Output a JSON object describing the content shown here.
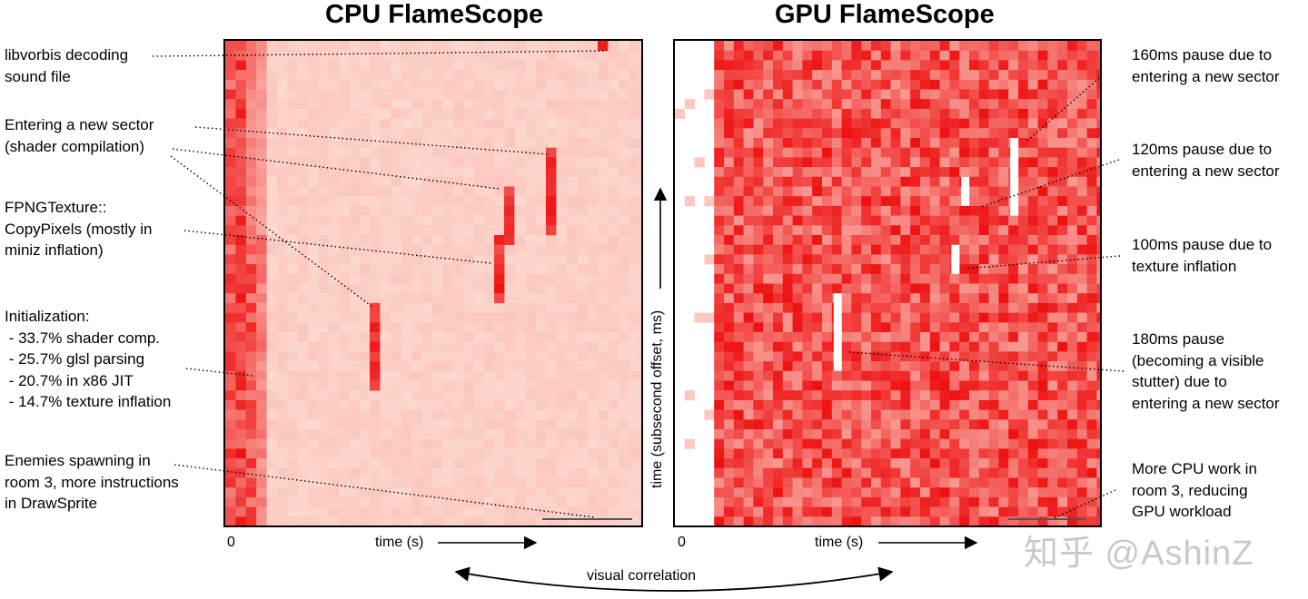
{
  "cpu_title": "CPU FlameScope",
  "gpu_title": "GPU FlameScope",
  "cpu_annotations": {
    "libvorbis": "libvorbis decoding\nsound file",
    "sector": "Entering a new sector\n(shader compilation)",
    "fpng": "FPNGTexture::\nCopyPixels (mostly in\nminiz inflation)",
    "init": "Initialization:\n - 33.7% shader comp.\n - 25.7% glsl parsing\n - 20.7% in x86 JIT\n - 14.7% texture inflation",
    "enemies": "Enemies spawning in\nroom 3, more instructions\nin DrawSprite"
  },
  "gpu_annotations": {
    "p160": "160ms pause due to\nentering a new sector",
    "p120": "120ms pause due to\nentering a new sector",
    "p100": "100ms pause due to\ntexture inflation",
    "p180": "180ms pause\n(becoming a visible\nstutter) due to\nentering a new sector",
    "cpuwork": "More CPU work in\nroom 3, reducing\nGPU workload"
  },
  "axes": {
    "x_zero": "0",
    "x_label": "time (s)",
    "y_label": "time (subsecond offset, ms)",
    "correlation": "visual correlation"
  },
  "watermark": "知乎 @AshinZ",
  "colors": {
    "cpu_background": "#fdeee6",
    "heat_light": "#fde0d6",
    "heat_dark": "#ee1111",
    "gpu_pause": "#ffffff"
  }
}
